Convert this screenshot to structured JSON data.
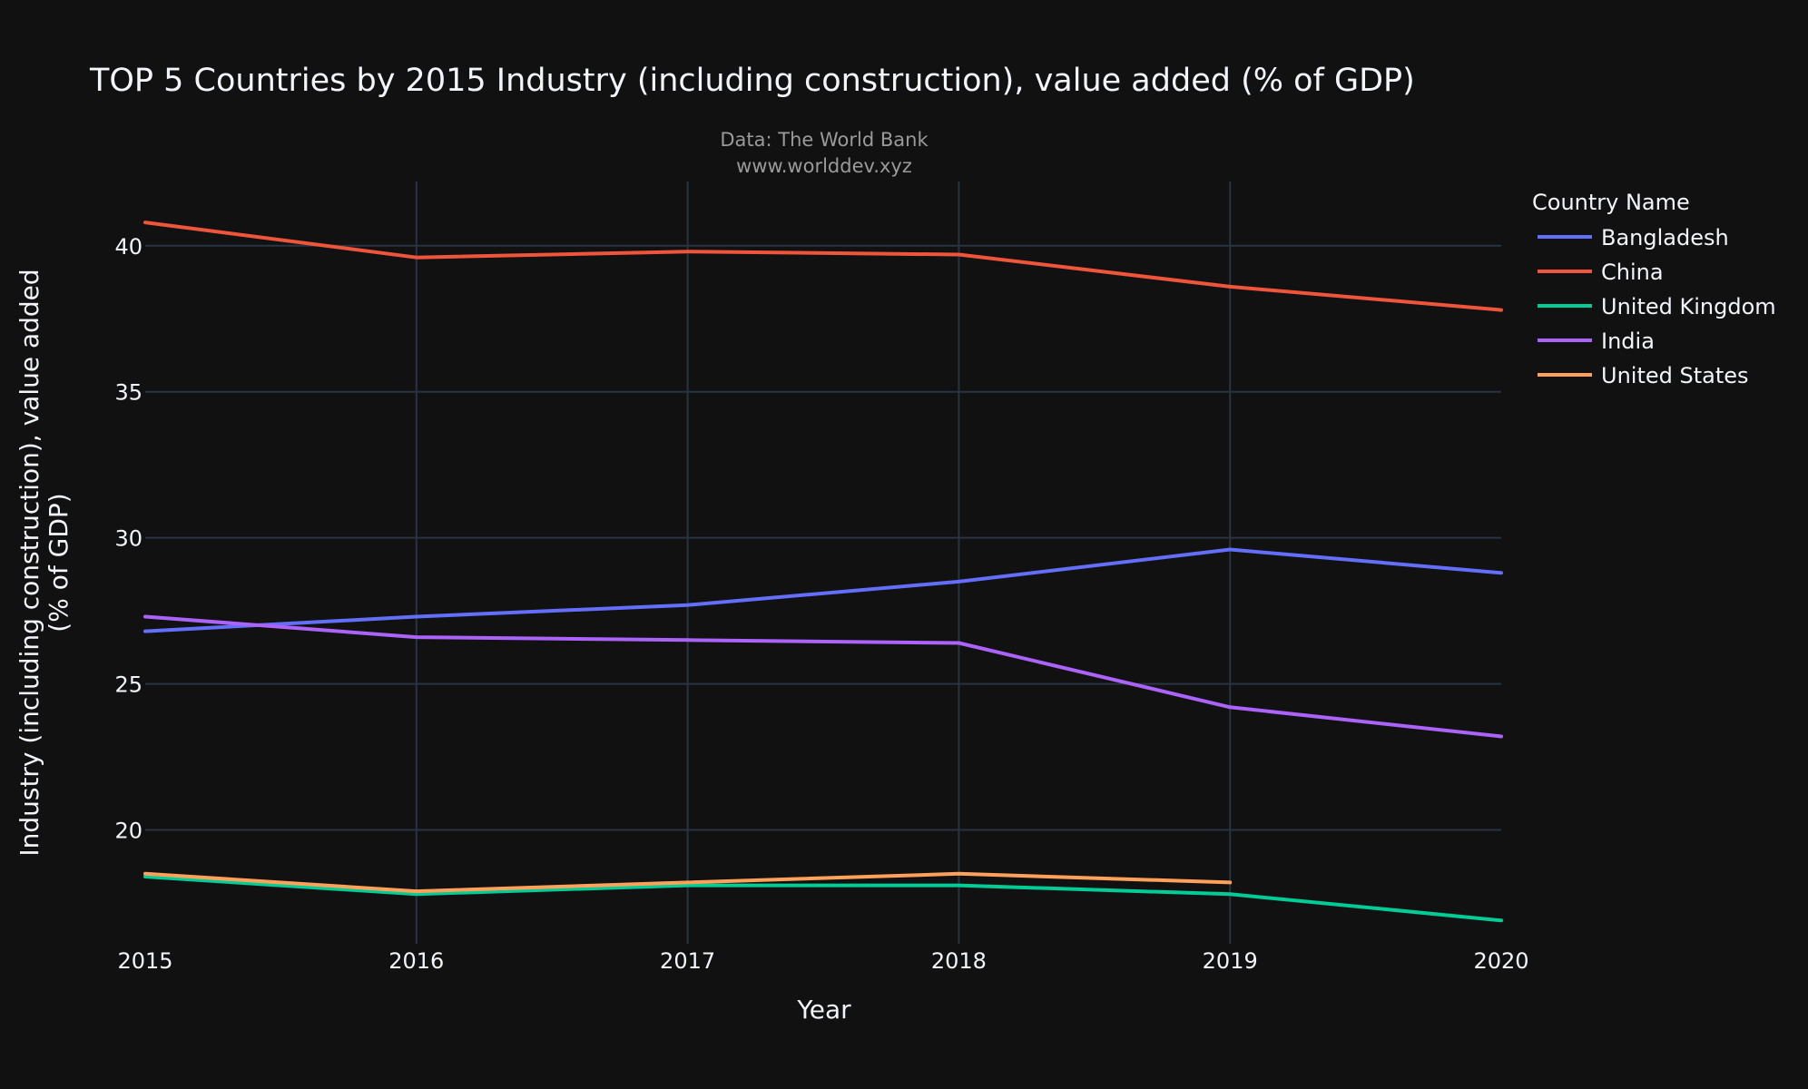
{
  "chart_data": {
    "type": "line",
    "title": "TOP 5 Countries by 2015 Industry (including construction), value added (% of GDP)",
    "subtitle_lines": [
      "Data: The World Bank",
      "www.worlddev.xyz"
    ],
    "xlabel": "Year",
    "ylabel_lines": [
      "Industry (including construction), value added",
      "(% of GDP)"
    ],
    "legend_title": "Country Name",
    "legend_position": "top-right",
    "grid": true,
    "x": [
      2015,
      2016,
      2017,
      2018,
      2019,
      2020
    ],
    "x_ticks": [
      "2015",
      "2016",
      "2017",
      "2018",
      "2019",
      "2020"
    ],
    "xlim": [
      2015,
      2020
    ],
    "y_ticks": [
      "20",
      "25",
      "30",
      "35",
      "40"
    ],
    "y_tick_values": [
      20,
      25,
      30,
      35,
      40
    ],
    "ylim": [
      16.1,
      42.2
    ],
    "series": [
      {
        "name": "Bangladesh",
        "color": "#636efa",
        "values": [
          26.8,
          27.3,
          27.7,
          28.5,
          29.6,
          28.8
        ]
      },
      {
        "name": "China",
        "color": "#ef553b",
        "values": [
          40.8,
          39.6,
          39.8,
          39.7,
          38.6,
          37.8
        ]
      },
      {
        "name": "United Kingdom",
        "color": "#00cc96",
        "values": [
          18.4,
          17.8,
          18.1,
          18.1,
          17.8,
          16.9
        ]
      },
      {
        "name": "India",
        "color": "#ab63fa",
        "values": [
          27.3,
          26.6,
          26.5,
          26.4,
          24.2,
          23.2
        ]
      },
      {
        "name": "United States",
        "color": "#ffa15a",
        "values": [
          18.5,
          17.9,
          18.2,
          18.5,
          18.2,
          null
        ]
      }
    ]
  }
}
